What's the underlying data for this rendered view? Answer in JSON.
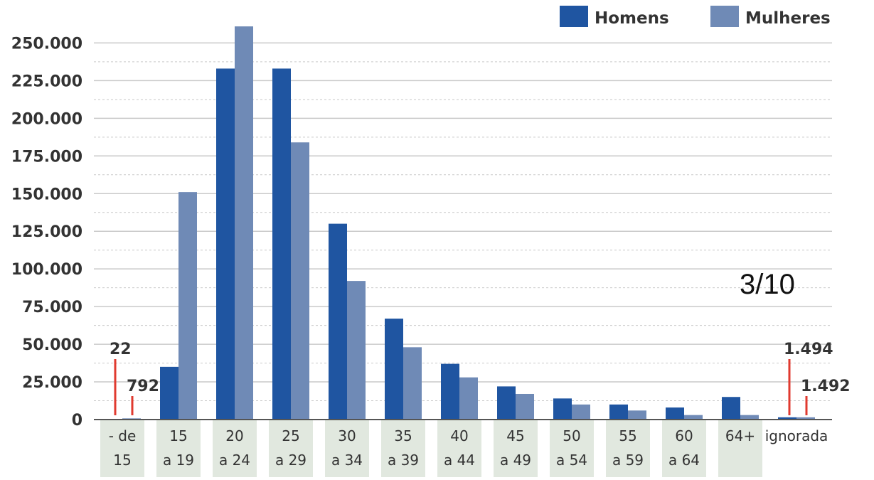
{
  "page_indicator": "3/10",
  "colors": {
    "homens": "#1f55a1",
    "mulheres": "#6f8ab6",
    "callout": "#e03a2f",
    "category_band": "#e1e8df",
    "grid": "#c9c9c9",
    "axis": "#555555"
  },
  "chart_data": {
    "type": "bar",
    "categories": [
      [
        "- de",
        "15"
      ],
      [
        "15",
        "a 19"
      ],
      [
        "20",
        "a 24"
      ],
      [
        "25",
        "a 29"
      ],
      [
        "30",
        "a 34"
      ],
      [
        "35",
        "a 39"
      ],
      [
        "40",
        "a 44"
      ],
      [
        "45",
        "a 49"
      ],
      [
        "50",
        "a 54"
      ],
      [
        "55",
        "a 59"
      ],
      [
        "60",
        "a 64"
      ],
      [
        "64+"
      ],
      [
        "ignorada"
      ]
    ],
    "series": [
      {
        "name": "Homens",
        "values": [
          22,
          35000,
          233000,
          233000,
          130000,
          67000,
          37000,
          22000,
          14000,
          10000,
          8000,
          15000,
          1494
        ]
      },
      {
        "name": "Mulheres",
        "values": [
          792,
          151000,
          261000,
          184000,
          92000,
          48000,
          28000,
          17000,
          10000,
          6000,
          3000,
          3000,
          1492
        ]
      }
    ],
    "yticks": [
      "0",
      "25.000",
      "50.000",
      "75.000",
      "100.000",
      "125.000",
      "150.000",
      "175.000",
      "200.000",
      "225.000",
      "250.000"
    ],
    "ylim": [
      0,
      262000
    ],
    "grid": true,
    "legend_position": "top-right",
    "callouts": [
      {
        "category_index": 0,
        "series_index": 0,
        "label": "22"
      },
      {
        "category_index": 0,
        "series_index": 1,
        "label": "792"
      },
      {
        "category_index": 12,
        "series_index": 0,
        "label": "1.494"
      },
      {
        "category_index": 12,
        "series_index": 1,
        "label": "1.492"
      }
    ],
    "shaded_categories": [
      0,
      1,
      2,
      3,
      4,
      5,
      6,
      7,
      8,
      9,
      10,
      11
    ]
  }
}
